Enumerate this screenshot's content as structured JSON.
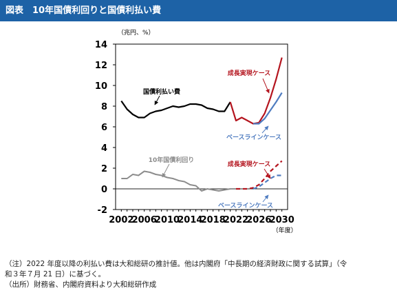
{
  "header": {
    "title": "図表　10年国債利回りと国債利払い費"
  },
  "chart_data": {
    "type": "line",
    "unit_label": "（兆円、%）",
    "x_unit_label": "（年度）",
    "x_ticks": [
      "2002",
      "2006",
      "2010",
      "2014",
      "2018",
      "2022",
      "2026",
      "2030"
    ],
    "ylim": [
      -2,
      14
    ],
    "y_ticks": [
      "-2",
      "0",
      "2",
      "4",
      "6",
      "8",
      "10",
      "12",
      "14"
    ],
    "colors": {
      "black": "#000000",
      "gray": "#8c8c8c",
      "red": "#b4141e",
      "blue": "#4f7cc0",
      "zero": "#222222"
    },
    "series": [
      {
        "name": "国債利払い費",
        "key": "interest_actual",
        "color": "black",
        "x": [
          2002,
          2003,
          2004,
          2005,
          2006,
          2007,
          2008,
          2009,
          2010,
          2011,
          2012,
          2013,
          2014,
          2015,
          2016,
          2017,
          2018,
          2019,
          2020,
          2021
        ],
        "y": [
          8.5,
          7.7,
          7.2,
          6.9,
          6.9,
          7.3,
          7.5,
          7.6,
          7.8,
          8.0,
          7.9,
          8.0,
          8.2,
          8.2,
          8.1,
          7.8,
          7.7,
          7.5,
          7.5,
          8.4
        ]
      },
      {
        "name": "成長実現ケース",
        "key": "interest_growth",
        "color": "red",
        "x": [
          2021,
          2022,
          2023,
          2024,
          2025,
          2026,
          2027,
          2028,
          2029,
          2030
        ],
        "y": [
          8.4,
          6.6,
          6.9,
          6.6,
          6.3,
          6.4,
          7.3,
          8.8,
          10.6,
          12.7
        ]
      },
      {
        "name": "ベースラインケース",
        "key": "interest_base",
        "color": "blue",
        "x": [
          2025,
          2026,
          2027,
          2028,
          2029,
          2030
        ],
        "y": [
          6.3,
          6.3,
          6.8,
          7.6,
          8.4,
          9.3
        ]
      },
      {
        "name": "10年国債利回り",
        "key": "yield_actual",
        "color": "gray",
        "x": [
          2002,
          2003,
          2004,
          2005,
          2006,
          2007,
          2008,
          2009,
          2010,
          2011,
          2012,
          2013,
          2014,
          2015,
          2016,
          2017,
          2018,
          2019,
          2020,
          2021
        ],
        "y": [
          1.0,
          1.0,
          1.4,
          1.3,
          1.7,
          1.6,
          1.4,
          1.3,
          1.1,
          1.0,
          0.8,
          0.7,
          0.4,
          0.3,
          -0.2,
          0.0,
          -0.1,
          -0.2,
          -0.1,
          0.0
        ]
      },
      {
        "name": "成長実現ケース",
        "key": "yield_growth",
        "color": "red",
        "dashed": true,
        "x": [
          2022,
          2023,
          2024,
          2025,
          2026,
          2027,
          2028,
          2029,
          2030
        ],
        "y": [
          0.0,
          0.0,
          0.0,
          0.1,
          0.4,
          1.0,
          1.7,
          2.2,
          2.7
        ]
      },
      {
        "name": "ベースラインケース",
        "key": "yield_base",
        "color": "blue",
        "dashed": true,
        "x": [
          2025,
          2026,
          2027,
          2028,
          2029,
          2030
        ],
        "y": [
          0.0,
          0.2,
          0.6,
          1.0,
          1.3,
          1.3
        ]
      }
    ]
  },
  "notes": {
    "line1": "（注）2022 年度以降の利払い費は大和総研の推計値。他は内閣府「中長期の経済財政に関する試算」（令",
    "line2": "和３年７月 21 日）に基づく。",
    "line3": "（出所）財務省、内閣府資料より大和総研作成"
  }
}
